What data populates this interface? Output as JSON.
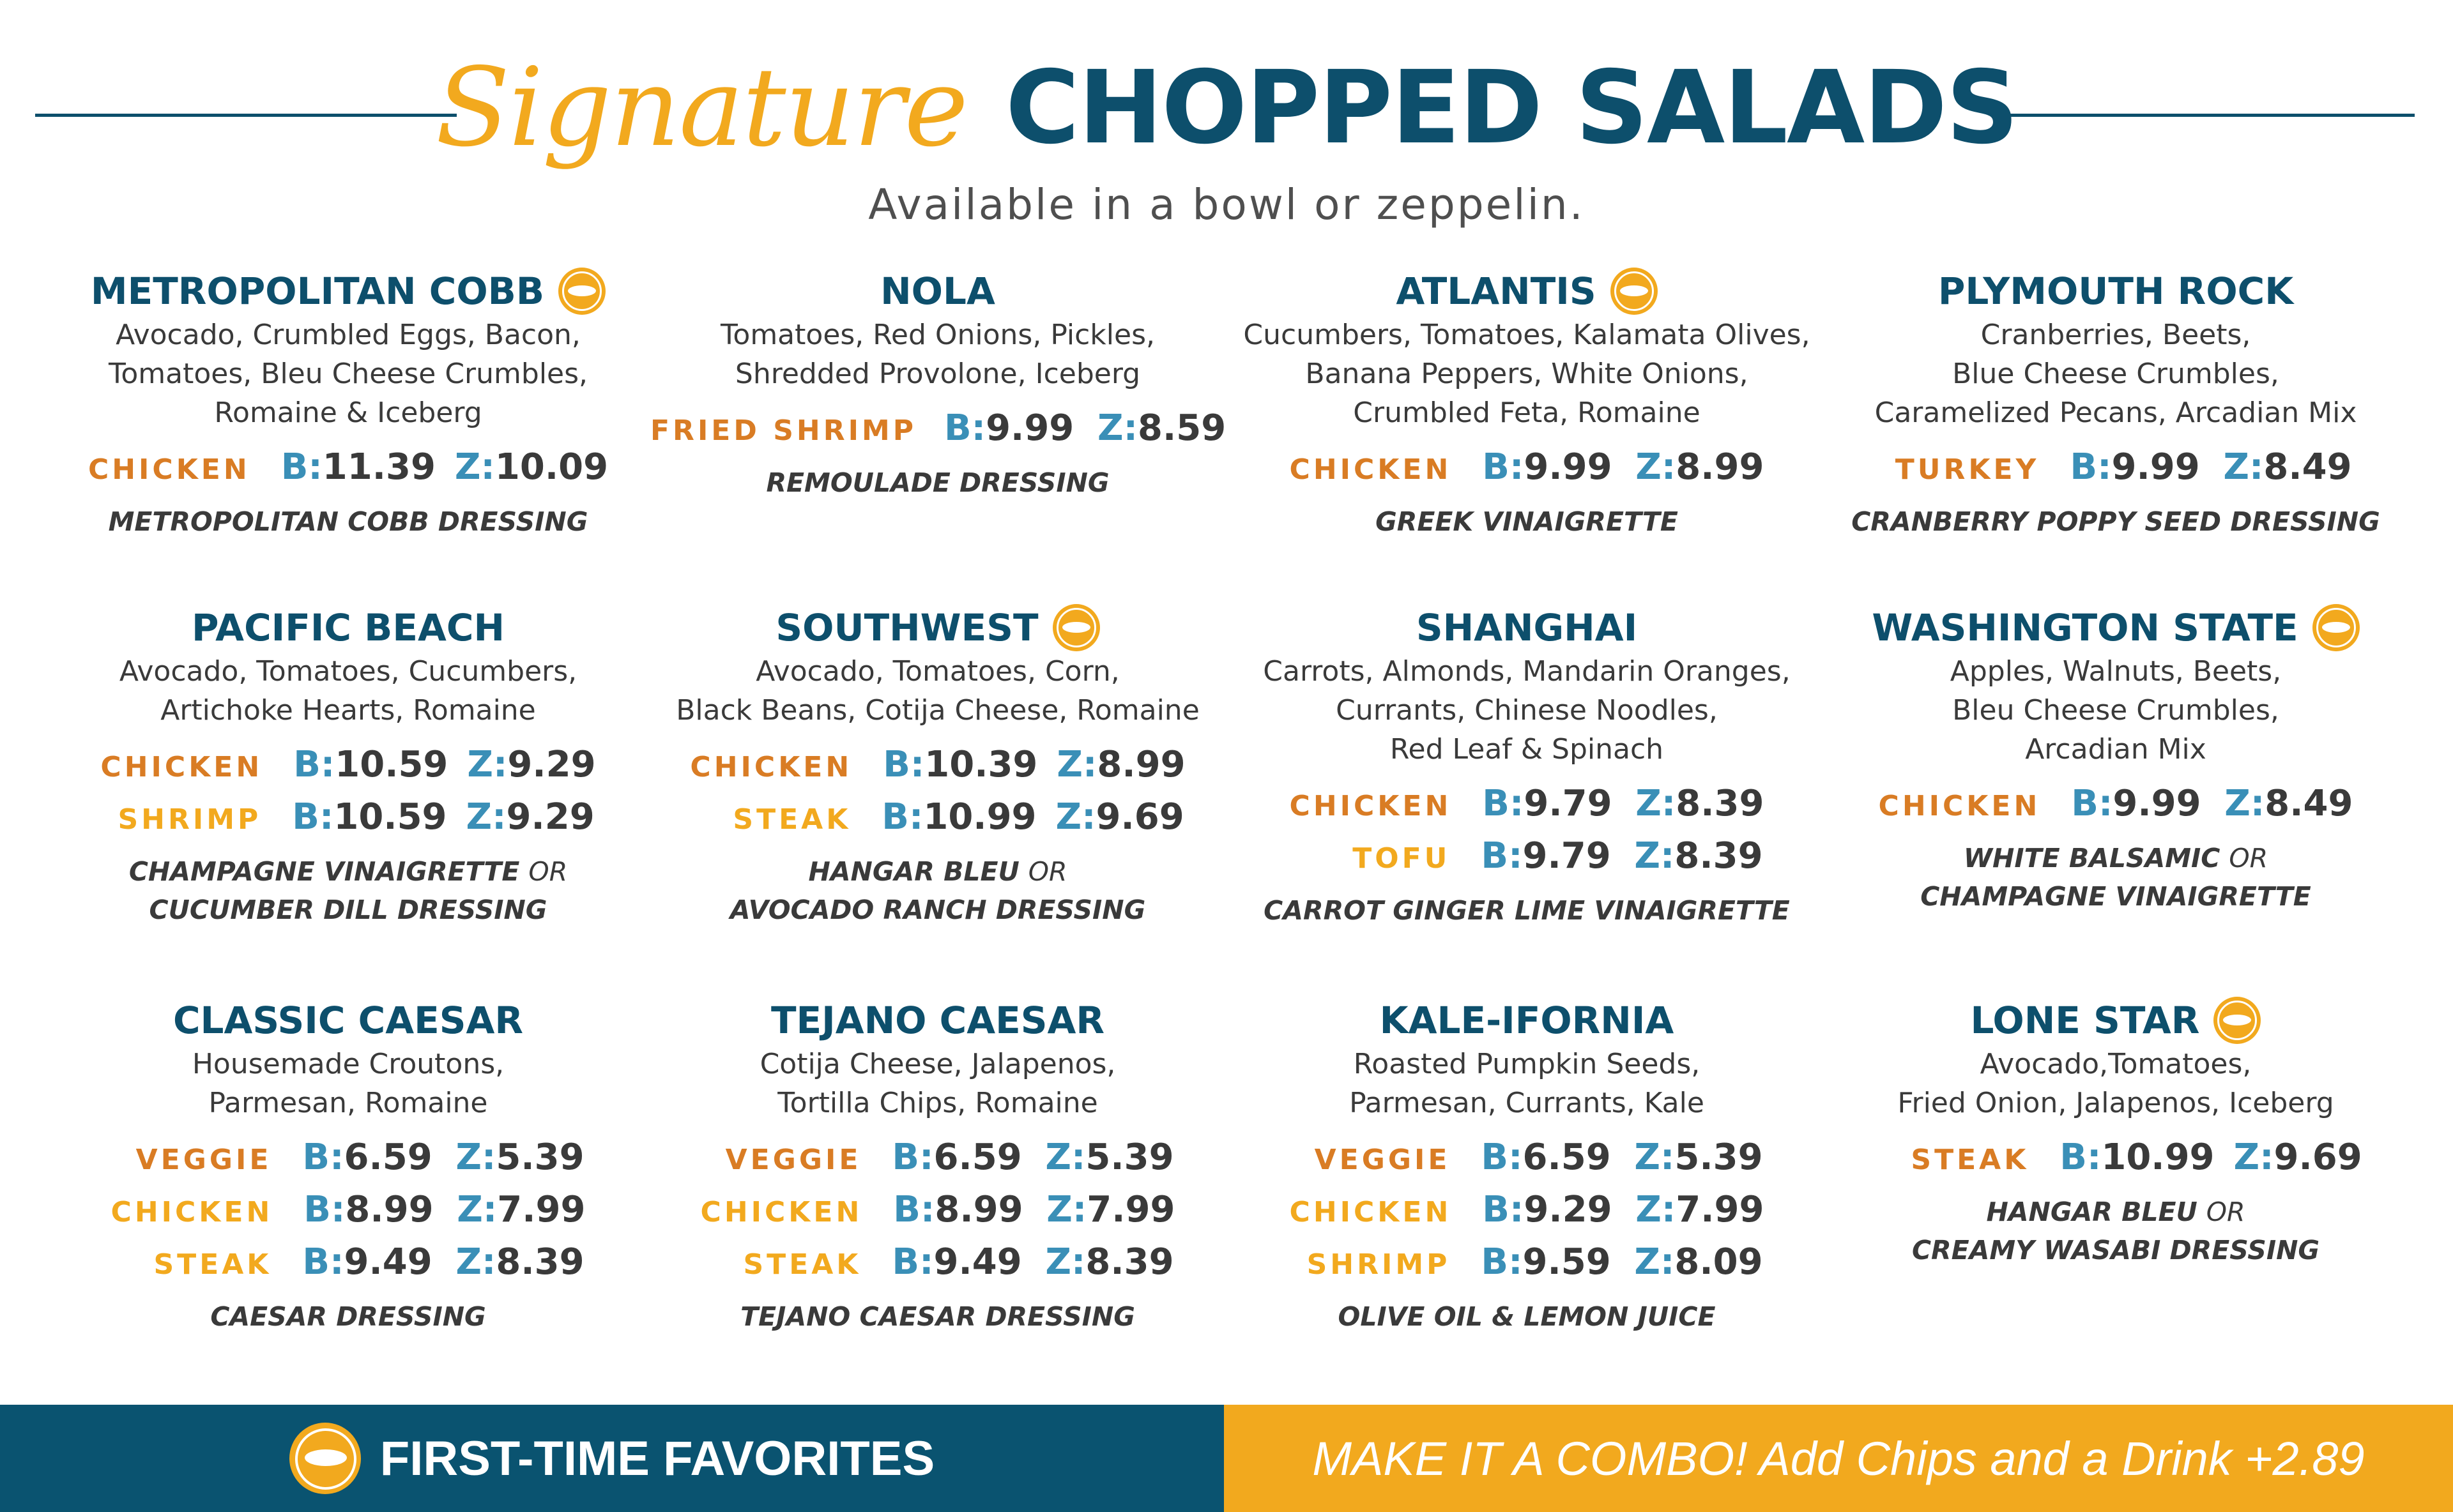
{
  "header": {
    "script": "Signature",
    "title": "CHOPPED SALADS",
    "subtitle": "Available in a bowl or zeppelin."
  },
  "price_keys": {
    "bowl": "B:",
    "zeppelin": "Z:"
  },
  "colors": {
    "navy": "#0d4f6c",
    "gold": "#f2a91e",
    "orange": "#d97c24",
    "teal": "#3a8fb7",
    "text": "#3a3a3a"
  },
  "favorite_icon": "first-time-favorite-badge-icon",
  "salads": [
    {
      "name": "METROPOLITAN COBB",
      "favorite": true,
      "desc": [
        "Avocado, Crumbled Eggs, Bacon,",
        "Tomatoes, Bleu Cheese Crumbles,",
        "Romaine & Iceberg"
      ],
      "prices": [
        {
          "label": "CHICKEN",
          "b": "11.39",
          "z": "10.09"
        }
      ],
      "dressing": [
        "METROPOLITAN COBB DRESSING"
      ]
    },
    {
      "name": "NOLA",
      "favorite": false,
      "desc": [
        "Tomatoes, Red Onions, Pickles,",
        "Shredded Provolone, Iceberg"
      ],
      "prices": [
        {
          "label": "FRIED SHRIMP",
          "b": "9.99",
          "z": "8.59"
        }
      ],
      "dressing": [
        "REMOULADE DRESSING"
      ]
    },
    {
      "name": "ATLANTIS",
      "favorite": true,
      "desc": [
        "Cucumbers, Tomatoes, Kalamata Olives,",
        "Banana Peppers, White Onions,",
        "Crumbled Feta, Romaine"
      ],
      "prices": [
        {
          "label": "CHICKEN",
          "b": "9.99",
          "z": "8.99"
        }
      ],
      "dressing": [
        "GREEK VINAIGRETTE"
      ]
    },
    {
      "name": "PLYMOUTH ROCK",
      "favorite": false,
      "desc": [
        "Cranberries, Beets,",
        "Blue Cheese Crumbles,",
        "Caramelized Pecans, Arcadian Mix"
      ],
      "prices": [
        {
          "label": "TURKEY",
          "b": "9.99",
          "z": "8.49"
        }
      ],
      "dressing": [
        "CRANBERRY POPPY SEED DRESSING"
      ]
    },
    {
      "name": "PACIFIC BEACH",
      "favorite": false,
      "desc": [
        "Avocado, Tomatoes, Cucumbers,",
        "Artichoke Hearts, Romaine"
      ],
      "prices": [
        {
          "label": "CHICKEN",
          "b": "10.59",
          "z": "9.29"
        },
        {
          "label": "SHRIMP",
          "b": "10.59",
          "z": "9.29"
        }
      ],
      "dressing": [
        "CHAMPAGNE VINAIGRETTE",
        "OR",
        "CUCUMBER DILL DRESSING"
      ]
    },
    {
      "name": "SOUTHWEST",
      "favorite": true,
      "desc": [
        "Avocado, Tomatoes, Corn,",
        "Black Beans, Cotija Cheese, Romaine"
      ],
      "prices": [
        {
          "label": "CHICKEN",
          "b": "10.39",
          "z": "8.99"
        },
        {
          "label": "STEAK",
          "b": "10.99",
          "z": "9.69"
        }
      ],
      "dressing": [
        "HANGAR BLEU",
        "OR",
        "AVOCADO RANCH DRESSING"
      ]
    },
    {
      "name": "SHANGHAI",
      "favorite": false,
      "desc": [
        "Carrots, Almonds, Mandarin Oranges,",
        "Currants, Chinese Noodles,",
        "Red Leaf & Spinach"
      ],
      "prices": [
        {
          "label": "CHICKEN",
          "b": "9.79",
          "z": "8.39"
        },
        {
          "label": "TOFU",
          "b": "9.79",
          "z": "8.39"
        }
      ],
      "dressing": [
        "CARROT GINGER LIME VINAIGRETTE"
      ]
    },
    {
      "name": "WASHINGTON STATE",
      "favorite": true,
      "desc": [
        "Apples, Walnuts, Beets,",
        "Bleu Cheese Crumbles,",
        "Arcadian Mix"
      ],
      "prices": [
        {
          "label": "CHICKEN",
          "b": "9.99",
          "z": "8.49"
        }
      ],
      "dressing": [
        "WHITE BALSAMIC",
        "OR",
        "CHAMPAGNE VINAIGRETTE"
      ]
    },
    {
      "name": "CLASSIC CAESAR",
      "favorite": false,
      "desc": [
        "Housemade Croutons,",
        "Parmesan, Romaine"
      ],
      "prices": [
        {
          "label": "VEGGIE",
          "b": "6.59",
          "z": "5.39"
        },
        {
          "label": "CHICKEN",
          "b": "8.99",
          "z": "7.99"
        },
        {
          "label": "STEAK",
          "b": "9.49",
          "z": "8.39"
        }
      ],
      "dressing": [
        "CAESAR DRESSING"
      ]
    },
    {
      "name": "TEJANO CAESAR",
      "favorite": false,
      "desc": [
        "Cotija Cheese, Jalapenos,",
        "Tortilla Chips, Romaine"
      ],
      "prices": [
        {
          "label": "VEGGIE",
          "b": "6.59",
          "z": "5.39"
        },
        {
          "label": "CHICKEN",
          "b": "8.99",
          "z": "7.99"
        },
        {
          "label": "STEAK",
          "b": "9.49",
          "z": "8.39"
        }
      ],
      "dressing": [
        "TEJANO CAESAR DRESSING"
      ]
    },
    {
      "name": "KALE-IFORNIA",
      "favorite": false,
      "desc": [
        "Roasted Pumpkin Seeds,",
        "Parmesan, Currants, Kale"
      ],
      "prices": [
        {
          "label": "VEGGIE",
          "b": "6.59",
          "z": "5.39"
        },
        {
          "label": "CHICKEN",
          "b": "9.29",
          "z": "7.99"
        },
        {
          "label": "SHRIMP",
          "b": "9.59",
          "z": "8.09"
        }
      ],
      "dressing": [
        "OLIVE OIL & LEMON JUICE"
      ]
    },
    {
      "name": "LONE STAR",
      "favorite": true,
      "desc": [
        "Avocado,Tomatoes,",
        "Fried Onion, Jalapenos, Iceberg"
      ],
      "prices": [
        {
          "label": "STEAK",
          "b": "10.99",
          "z": "9.69"
        }
      ],
      "dressing": [
        "HANGAR BLEU",
        "OR",
        "CREAMY WASABI DRESSING"
      ]
    }
  ],
  "footer": {
    "favorites_label": "FIRST-TIME FAVORITES",
    "combo_text": "MAKE IT A COMBO!  Add Chips and a Drink +2.89"
  }
}
